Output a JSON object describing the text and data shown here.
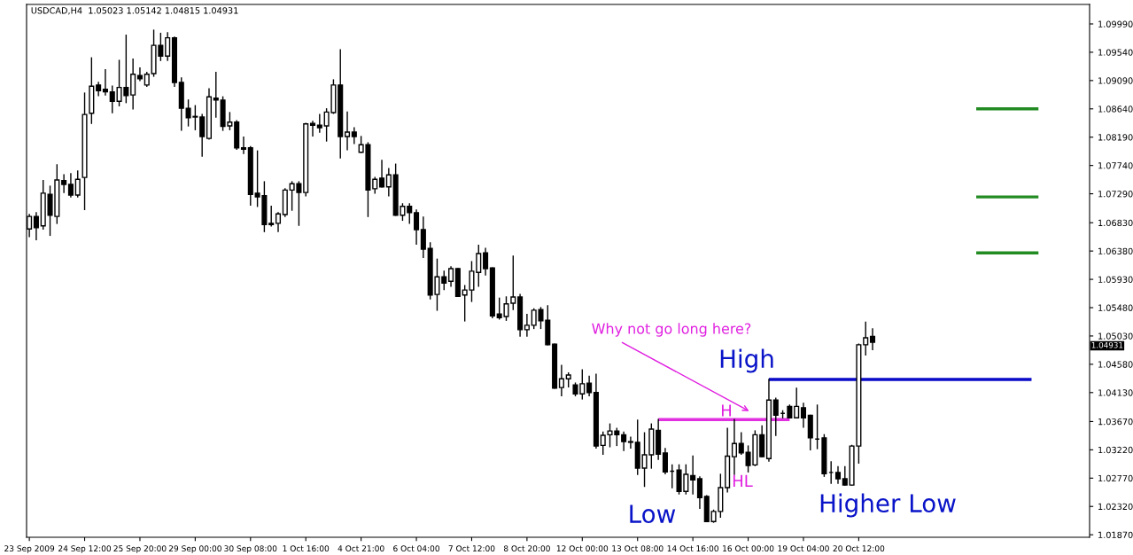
{
  "chart_data": {
    "type": "candlestick",
    "title": "USDCAD,H4  1.05023 1.05142 1.04815 1.04931",
    "categories": [
      "23 Sep 2009",
      null,
      null,
      null,
      null,
      null,
      null,
      null,
      "24 Sep 12:00",
      null,
      null,
      null,
      null,
      null,
      null,
      null,
      "25 Sep 20:00",
      null,
      null,
      null,
      null,
      null,
      null,
      null,
      "29 Sep 00:00",
      null,
      null,
      null,
      null,
      null,
      null,
      null,
      "30 Sep 08:00",
      null,
      null,
      null,
      null,
      null,
      null,
      null,
      "1 Oct 16:00",
      null,
      null,
      null,
      null,
      null,
      null,
      null,
      "4 Oct 21:00",
      null,
      null,
      null,
      null,
      null,
      null,
      null,
      "6 Oct 04:00",
      null,
      null,
      null,
      null,
      null,
      null,
      null,
      "7 Oct 12:00",
      null,
      null,
      null,
      null,
      null,
      null,
      null,
      "8 Oct 20:00",
      null,
      null,
      null,
      null,
      null,
      null,
      null,
      "12 Oct 00:00",
      null,
      null,
      null,
      null,
      null,
      null,
      null,
      "13 Oct 08:00",
      null,
      null,
      null,
      null,
      null,
      null,
      null,
      "14 Oct 16:00",
      null,
      null,
      null,
      null,
      null,
      null,
      null,
      "16 Oct 00:00",
      null,
      null,
      null,
      null,
      null,
      null,
      null,
      "19 Oct 04:00",
      null,
      null,
      null,
      null,
      null,
      null,
      null,
      "20 Oct 12:00",
      null,
      null,
      null,
      null,
      null,
      null,
      null,
      null,
      null,
      null,
      null,
      null,
      null,
      null,
      null,
      null,
      null,
      null,
      null,
      null,
      null,
      null,
      null,
      null,
      null,
      null,
      null,
      null,
      null,
      null,
      null,
      null,
      null
    ],
    "ohlc": [
      [
        1.0673,
        1.0696,
        1.0661,
        1.0693
      ],
      [
        1.0693,
        1.0699,
        1.0656,
        1.0675
      ],
      [
        1.0678,
        1.075,
        1.0673,
        1.073
      ],
      [
        1.0728,
        1.0741,
        1.0663,
        1.0695
      ],
      [
        1.0693,
        1.0775,
        1.0682,
        1.0751
      ],
      [
        1.075,
        1.0759,
        1.0731,
        1.0744
      ],
      [
        1.0744,
        1.0761,
        1.0724,
        1.0727
      ],
      [
        1.0727,
        1.0765,
        1.0724,
        1.0752
      ],
      [
        1.0755,
        1.0889,
        1.0704,
        1.0855
      ],
      [
        1.0857,
        1.0945,
        1.0841,
        1.09
      ],
      [
        1.0902,
        1.0906,
        1.0885,
        1.0893
      ],
      [
        1.0895,
        1.0926,
        1.0886,
        1.0891
      ],
      [
        1.0891,
        1.09,
        1.0858,
        1.0876
      ],
      [
        1.0876,
        1.0941,
        1.0869,
        1.0898
      ],
      [
        1.0898,
        1.0981,
        1.0874,
        1.0885
      ],
      [
        1.0886,
        1.0943,
        1.0864,
        1.0919
      ],
      [
        1.0917,
        1.0929,
        1.0909,
        1.0912
      ],
      [
        1.0902,
        1.0922,
        1.09,
        1.0919
      ],
      [
        1.092,
        1.0989,
        1.0916,
        1.0965
      ],
      [
        1.0965,
        1.0984,
        1.0941,
        1.0948
      ],
      [
        1.0948,
        1.0985,
        1.0941,
        1.0977
      ],
      [
        1.0977,
        1.0978,
        1.09,
        1.0906
      ],
      [
        1.0906,
        1.0913,
        1.083,
        1.0865
      ],
      [
        1.0865,
        1.0878,
        1.0837,
        1.085
      ],
      [
        1.0852,
        1.0869,
        1.0831,
        1.0851
      ],
      [
        1.0851,
        1.0855,
        1.0789,
        1.082
      ],
      [
        1.0817,
        1.0896,
        1.0816,
        1.0883
      ],
      [
        1.0881,
        1.0922,
        1.0851,
        1.0878
      ],
      [
        1.0878,
        1.0883,
        1.083,
        1.0836
      ],
      [
        1.0837,
        1.0858,
        1.0831,
        1.0843
      ],
      [
        1.0843,
        1.0845,
        1.08,
        1.0802
      ],
      [
        1.0802,
        1.0819,
        1.0793,
        1.08
      ],
      [
        1.0802,
        1.0804,
        1.0711,
        1.0728
      ],
      [
        1.073,
        1.0797,
        1.0709,
        1.0724
      ],
      [
        1.0726,
        1.0748,
        1.0669,
        1.068
      ],
      [
        1.0682,
        1.0709,
        1.0678,
        1.068
      ],
      [
        1.0682,
        1.0699,
        1.0669,
        1.0697
      ],
      [
        1.0696,
        1.0737,
        1.0693,
        1.0735
      ],
      [
        1.0735,
        1.0748,
        1.0703,
        1.0745
      ],
      [
        1.0745,
        1.0748,
        1.0679,
        1.0731
      ],
      [
        1.0731,
        1.0841,
        1.0726,
        1.084
      ],
      [
        1.0841,
        1.0844,
        1.0821,
        1.0838
      ],
      [
        1.0838,
        1.0855,
        1.0827,
        1.0834
      ],
      [
        1.0837,
        1.0864,
        1.0813,
        1.0859
      ],
      [
        1.0858,
        1.091,
        1.0857,
        1.0902
      ],
      [
        1.0902,
        1.0958,
        1.0786,
        1.082
      ],
      [
        1.082,
        1.0859,
        1.0799,
        1.0827
      ],
      [
        1.0827,
        1.0834,
        1.0809,
        1.082
      ],
      [
        1.0795,
        1.082,
        1.0795,
        1.0807
      ],
      [
        1.0807,
        1.081,
        1.0693,
        1.0735
      ],
      [
        1.0737,
        1.0755,
        1.073,
        1.0752
      ],
      [
        1.0754,
        1.0782,
        1.074,
        1.074
      ],
      [
        1.074,
        1.0769,
        1.0726,
        1.0759
      ],
      [
        1.0759,
        1.0776,
        1.0695,
        1.0695
      ],
      [
        1.0695,
        1.0713,
        1.0687,
        1.0709
      ],
      [
        1.0709,
        1.0713,
        1.0682,
        1.0699
      ],
      [
        1.0699,
        1.0703,
        1.0649,
        1.0672
      ],
      [
        1.0672,
        1.0692,
        1.0628,
        1.0641
      ],
      [
        1.0642,
        1.0651,
        1.0562,
        1.0568
      ],
      [
        1.0569,
        1.0625,
        1.0544,
        1.0597
      ],
      [
        1.0597,
        1.0606,
        1.0577,
        1.0587
      ],
      [
        1.059,
        1.0613,
        1.0582,
        1.061
      ],
      [
        1.061,
        1.061,
        1.0566,
        1.0566
      ],
      [
        1.0568,
        1.0583,
        1.0527,
        1.0576
      ],
      [
        1.0576,
        1.0621,
        1.0558,
        1.0606
      ],
      [
        1.0604,
        1.0647,
        1.0582,
        1.0634
      ],
      [
        1.0635,
        1.0642,
        1.06,
        1.061
      ],
      [
        1.0611,
        1.0611,
        1.0532,
        1.0535
      ],
      [
        1.0538,
        1.0563,
        1.053,
        1.0532
      ],
      [
        1.0534,
        1.0565,
        1.0528,
        1.0554
      ],
      [
        1.0555,
        1.063,
        1.0545,
        1.0565
      ],
      [
        1.0565,
        1.0569,
        1.0503,
        1.0513
      ],
      [
        1.0513,
        1.0537,
        1.0503,
        1.052
      ],
      [
        1.052,
        1.0546,
        1.0515,
        1.0544
      ],
      [
        1.0545,
        1.0548,
        1.0515,
        1.0527
      ],
      [
        1.0528,
        1.0551,
        1.0489,
        1.0489
      ],
      [
        1.049,
        1.049,
        1.042,
        1.042
      ],
      [
        1.0421,
        1.0456,
        1.0408,
        1.0435
      ],
      [
        1.0435,
        1.0444,
        1.0422,
        1.0441
      ],
      [
        1.0425,
        1.0428,
        1.0408,
        1.0411
      ],
      [
        1.0411,
        1.0449,
        1.0403,
        1.0427
      ],
      [
        1.0428,
        1.0439,
        1.0408,
        1.0413
      ],
      [
        1.0413,
        1.0442,
        1.0325,
        1.0328
      ],
      [
        1.0329,
        1.035,
        1.0315,
        1.0345
      ],
      [
        1.0346,
        1.0363,
        1.0327,
        1.0352
      ],
      [
        1.0352,
        1.0356,
        1.0329,
        1.0346
      ],
      [
        1.0346,
        1.035,
        1.0321,
        1.0335
      ],
      [
        1.0335,
        1.0342,
        1.0325,
        1.0334
      ],
      [
        1.0334,
        1.0369,
        1.0283,
        1.0293
      ],
      [
        1.0293,
        1.0349,
        1.0264,
        1.0314
      ],
      [
        1.0314,
        1.0363,
        1.0293,
        1.0355
      ],
      [
        1.0353,
        1.037,
        1.0307,
        1.0315
      ],
      [
        1.0317,
        1.0324,
        1.0284,
        1.0287
      ],
      [
        1.0288,
        1.0298,
        1.0262,
        1.0288
      ],
      [
        1.029,
        1.0298,
        1.0252,
        1.0256
      ],
      [
        1.0256,
        1.0298,
        1.0252,
        1.0283
      ],
      [
        1.0281,
        1.0312,
        1.0252,
        1.0274
      ],
      [
        1.0276,
        1.0279,
        1.0229,
        1.0246
      ],
      [
        1.0248,
        1.0249,
        1.0208,
        1.0208
      ],
      [
        1.0208,
        1.0226,
        1.0207,
        1.0224
      ],
      [
        1.0224,
        1.0283,
        1.0215,
        1.0262
      ],
      [
        1.0262,
        1.0356,
        1.0255,
        1.0312
      ],
      [
        1.0311,
        1.037,
        1.0283,
        1.0332
      ],
      [
        1.0332,
        1.0349,
        1.0315,
        1.0317
      ],
      [
        1.0318,
        1.0328,
        1.0287,
        1.0297
      ],
      [
        1.0298,
        1.0352,
        1.0297,
        1.0346
      ],
      [
        1.0346,
        1.036,
        1.0311,
        1.0311
      ],
      [
        1.0308,
        1.0434,
        1.0304,
        1.0401
      ],
      [
        1.0401,
        1.0404,
        1.0345,
        1.0377
      ],
      [
        1.038,
        1.0384,
        1.0373,
        1.038
      ],
      [
        1.0391,
        1.0393,
        1.0373,
        1.0373
      ],
      [
        1.0373,
        1.042,
        1.0373,
        1.0391
      ],
      [
        1.0389,
        1.0396,
        1.0358,
        1.0373
      ],
      [
        1.0377,
        1.0377,
        1.0322,
        1.0341
      ],
      [
        1.0339,
        1.0393,
        1.0324,
        1.0339
      ],
      [
        1.0341,
        1.0346,
        1.028,
        1.0284
      ],
      [
        1.0286,
        1.0303,
        1.0269,
        1.0286
      ],
      [
        1.0286,
        1.0295,
        1.0269,
        1.0276
      ],
      [
        1.0276,
        1.0295,
        1.0266,
        1.0266
      ],
      [
        1.0266,
        1.0329,
        1.0266,
        1.0328
      ],
      [
        1.0328,
        1.049,
        1.0301,
        1.0489
      ],
      [
        1.0489,
        1.0525,
        1.0473,
        1.05
      ],
      [
        1.05023,
        1.05142,
        1.04815,
        1.04931
      ],
      null,
      null,
      null,
      null,
      null,
      null,
      null,
      null,
      null,
      null,
      null,
      null,
      null,
      null,
      null,
      null,
      null,
      null,
      null,
      null,
      null,
      null,
      null,
      null,
      null,
      null,
      null,
      null,
      null,
      null,
      null
    ],
    "series": [
      {
        "type": "line",
        "color": "#228b22",
        "values": [
          null,
          null,
          null,
          null,
          null,
          null,
          null,
          null,
          null,
          null,
          null,
          null,
          null,
          null,
          null,
          null,
          null,
          null,
          null,
          null,
          null,
          null,
          null,
          null,
          null,
          null,
          null,
          null,
          null,
          null,
          null,
          null,
          null,
          null,
          null,
          null,
          null,
          null,
          null,
          null,
          null,
          null,
          null,
          null,
          null,
          null,
          null,
          null,
          null,
          null,
          null,
          null,
          null,
          null,
          null,
          null,
          null,
          null,
          null,
          null,
          null,
          null,
          null,
          null,
          null,
          null,
          null,
          null,
          null,
          null,
          null,
          null,
          null,
          null,
          null,
          null,
          null,
          null,
          null,
          null,
          null,
          null,
          null,
          null,
          null,
          null,
          null,
          null,
          null,
          null,
          null,
          null,
          null,
          null,
          null,
          null,
          null,
          null,
          null,
          null,
          null,
          null,
          null,
          null,
          null,
          null,
          null,
          null,
          null,
          null,
          null,
          null,
          null,
          null,
          null,
          null,
          null,
          null,
          null,
          null,
          null,
          null,
          null,
          null,
          null,
          null,
          null,
          null,
          null,
          null,
          null,
          null,
          null,
          null,
          null,
          null,
          null,
          1.0864,
          1.0864,
          1.0864,
          1.0864,
          1.0864,
          1.0864,
          1.0864,
          1.0864,
          1.0864,
          1.0864,
          null,
          null,
          null,
          null,
          null,
          null,
          null
        ]
      },
      {
        "type": "line",
        "color": "#228b22",
        "values": [
          null,
          null,
          null,
          null,
          null,
          null,
          null,
          null,
          null,
          null,
          null,
          null,
          null,
          null,
          null,
          null,
          null,
          null,
          null,
          null,
          null,
          null,
          null,
          null,
          null,
          null,
          null,
          null,
          null,
          null,
          null,
          null,
          null,
          null,
          null,
          null,
          null,
          null,
          null,
          null,
          null,
          null,
          null,
          null,
          null,
          null,
          null,
          null,
          null,
          null,
          null,
          null,
          null,
          null,
          null,
          null,
          null,
          null,
          null,
          null,
          null,
          null,
          null,
          null,
          null,
          null,
          null,
          null,
          null,
          null,
          null,
          null,
          null,
          null,
          null,
          null,
          null,
          null,
          null,
          null,
          null,
          null,
          null,
          null,
          null,
          null,
          null,
          null,
          null,
          null,
          null,
          null,
          null,
          null,
          null,
          null,
          null,
          null,
          null,
          null,
          null,
          null,
          null,
          null,
          null,
          null,
          null,
          null,
          null,
          null,
          null,
          null,
          null,
          null,
          null,
          null,
          null,
          null,
          null,
          null,
          null,
          null,
          null,
          null,
          null,
          null,
          null,
          null,
          null,
          null,
          null,
          null,
          null,
          null,
          null,
          null,
          null,
          1.0724,
          1.0724,
          1.0724,
          1.0724,
          1.0724,
          1.0724,
          1.0724,
          1.0724,
          1.0724,
          1.0724,
          null,
          null,
          null,
          null,
          null,
          null,
          null
        ]
      },
      {
        "type": "line",
        "color": "#228b22",
        "values": [
          null,
          null,
          null,
          null,
          null,
          null,
          null,
          null,
          null,
          null,
          null,
          null,
          null,
          null,
          null,
          null,
          null,
          null,
          null,
          null,
          null,
          null,
          null,
          null,
          null,
          null,
          null,
          null,
          null,
          null,
          null,
          null,
          null,
          null,
          null,
          null,
          null,
          null,
          null,
          null,
          null,
          null,
          null,
          null,
          null,
          null,
          null,
          null,
          null,
          null,
          null,
          null,
          null,
          null,
          null,
          null,
          null,
          null,
          null,
          null,
          null,
          null,
          null,
          null,
          null,
          null,
          null,
          null,
          null,
          null,
          null,
          null,
          null,
          null,
          null,
          null,
          null,
          null,
          null,
          null,
          null,
          null,
          null,
          null,
          null,
          null,
          null,
          null,
          null,
          null,
          null,
          null,
          null,
          null,
          null,
          null,
          null,
          null,
          null,
          null,
          null,
          null,
          null,
          null,
          null,
          null,
          null,
          null,
          null,
          null,
          null,
          null,
          null,
          null,
          null,
          null,
          null,
          null,
          null,
          null,
          null,
          null,
          null,
          null,
          null,
          null,
          null,
          null,
          null,
          null,
          null,
          null,
          null,
          null,
          null,
          null,
          null,
          1.0635,
          1.0635,
          1.0635,
          1.0635,
          1.0635,
          1.0635,
          1.0635,
          1.0635,
          1.0635,
          1.0635,
          null,
          null,
          null,
          null,
          null,
          null,
          null
        ]
      },
      {
        "type": "line",
        "color": "#0a0ac8",
        "values": [
          null,
          null,
          null,
          null,
          null,
          null,
          null,
          null,
          null,
          null,
          null,
          null,
          null,
          null,
          null,
          null,
          null,
          null,
          null,
          null,
          null,
          null,
          null,
          null,
          null,
          null,
          null,
          null,
          null,
          null,
          null,
          null,
          null,
          null,
          null,
          null,
          null,
          null,
          null,
          null,
          null,
          null,
          null,
          null,
          null,
          null,
          null,
          null,
          null,
          null,
          null,
          null,
          null,
          null,
          null,
          null,
          null,
          null,
          null,
          null,
          null,
          null,
          null,
          null,
          null,
          null,
          null,
          null,
          null,
          null,
          null,
          null,
          null,
          null,
          null,
          null,
          null,
          null,
          null,
          null,
          null,
          null,
          null,
          null,
          null,
          null,
          null,
          null,
          null,
          null,
          null,
          null,
          null,
          null,
          null,
          null,
          null,
          null,
          null,
          null,
          null,
          null,
          null,
          null,
          null,
          null,
          null,
          1.0434,
          1.0434,
          1.0434,
          1.0434,
          1.0434,
          1.0434,
          1.0434,
          1.0434,
          1.0434,
          1.0434,
          1.0434,
          1.0434,
          1.0434,
          1.0434,
          1.0434,
          1.0434,
          1.0434,
          1.0434,
          1.0434,
          1.0434,
          1.0434,
          1.0434,
          1.0434,
          1.0434,
          1.0434,
          1.0434,
          1.0434,
          1.0434,
          1.0434,
          1.0434,
          1.0434,
          1.0434,
          1.0434,
          1.0434,
          1.0434,
          1.0434,
          1.0434,
          1.0434,
          1.0434,
          null,
          null,
          null,
          null,
          null,
          null,
          null,
          null
        ]
      },
      {
        "type": "line",
        "color": "#e030e0",
        "values": [
          null,
          null,
          null,
          null,
          null,
          null,
          null,
          null,
          null,
          null,
          null,
          null,
          null,
          null,
          null,
          null,
          null,
          null,
          null,
          null,
          null,
          null,
          null,
          null,
          null,
          null,
          null,
          null,
          null,
          null,
          null,
          null,
          null,
          null,
          null,
          null,
          null,
          null,
          null,
          null,
          null,
          null,
          null,
          null,
          null,
          null,
          null,
          null,
          null,
          null,
          null,
          null,
          null,
          null,
          null,
          null,
          null,
          null,
          null,
          null,
          null,
          null,
          null,
          null,
          null,
          null,
          null,
          null,
          null,
          null,
          null,
          null,
          null,
          null,
          null,
          null,
          null,
          null,
          null,
          null,
          null,
          null,
          null,
          null,
          null,
          null,
          null,
          null,
          null,
          null,
          null,
          1.037,
          1.037,
          1.037,
          1.037,
          1.037,
          1.037,
          1.037,
          1.037,
          1.037,
          1.037,
          1.037,
          1.037,
          1.037,
          1.037,
          1.037,
          1.037,
          1.037,
          1.037,
          1.037,
          1.037,
          null,
          null,
          null,
          null,
          null,
          null,
          null,
          null,
          null,
          null,
          null,
          null,
          null,
          null,
          null,
          null,
          null,
          null,
          null,
          null,
          null,
          null,
          null,
          null,
          null,
          null,
          null,
          null,
          null,
          null,
          null,
          null,
          null,
          null,
          null,
          null,
          null,
          null,
          null,
          null,
          null,
          null,
          null
        ]
      }
    ],
    "ylim": [
      1.0183,
      1.103
    ],
    "yticks": [
      {
        "value": 1.0999,
        "label": "1.09990"
      },
      {
        "value": 1.0954,
        "label": "1.09540"
      },
      {
        "value": 1.0909,
        "label": "1.09090"
      },
      {
        "value": 1.0864,
        "label": "1.08640"
      },
      {
        "value": 1.0819,
        "label": "1.08190"
      },
      {
        "value": 1.0774,
        "label": "1.07740"
      },
      {
        "value": 1.0729,
        "label": "1.07290"
      },
      {
        "value": 1.0683,
        "label": "1.06830"
      },
      {
        "value": 1.0638,
        "label": "1.06380"
      },
      {
        "value": 1.0593,
        "label": "1.05930"
      },
      {
        "value": 1.0548,
        "label": "1.05480"
      },
      {
        "value": 1.0503,
        "label": "1.05030"
      },
      {
        "value": 1.0458,
        "label": "1.04580"
      },
      {
        "value": 1.0413,
        "label": "1.04130"
      },
      {
        "value": 1.0367,
        "label": "1.03670"
      },
      {
        "value": 1.0322,
        "label": "1.03220"
      },
      {
        "value": 1.0277,
        "label": "1.02770"
      },
      {
        "value": 1.0232,
        "label": "1.02320"
      },
      {
        "value": 1.0187,
        "label": "1.01870"
      }
    ],
    "annotations": [
      "Why not go long here?",
      "High",
      {
        "text": "H",
        "y": 1.037
      },
      "HL",
      "Low",
      "Higher Low",
      "1.04931"
    ],
    "grid": false,
    "legend": false
  }
}
